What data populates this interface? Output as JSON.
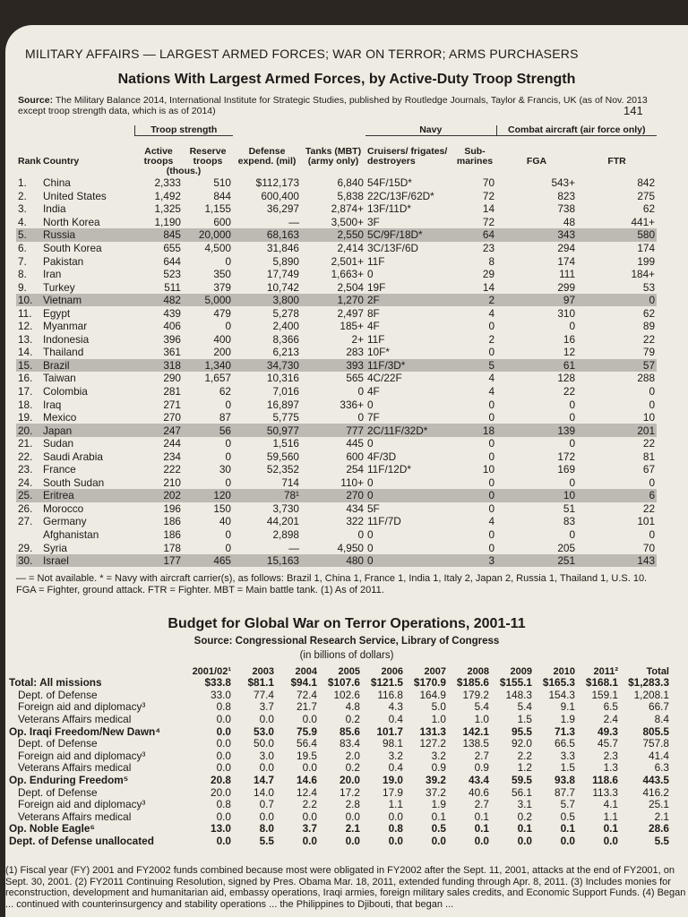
{
  "header": {
    "running_title": "MILITARY AFFAIRS — LARGEST ARMED FORCES; WAR ON TERROR; ARMS PURCHASERS",
    "page_number": "141"
  },
  "forces_table": {
    "title": "Nations With Largest Armed Forces, by Active-Duty Troop Strength",
    "source_label": "Source:",
    "source": "The Military Balance 2014, International Institute for Strategic Studies, published by Routledge Journals, Taylor & Francis, UK (as of Nov. 2013 except troop strength data, which is as of 2014)",
    "group_headers": [
      "Troop strength",
      "(thous.)",
      "Navy",
      "Combat aircraft (air force only)"
    ],
    "columns": [
      "Rank",
      "Country",
      "Active troops",
      "Reserve troops",
      "Defense expend. (mil)",
      "Tanks (MBT) (army only)",
      "Cruisers/ frigates/ destroyers",
      "Sub-marines",
      "FGA",
      "FTR"
    ],
    "rows": [
      [
        "1.",
        "China",
        "2,333",
        "510",
        "$112,173",
        "6,840",
        "54F/15D*",
        "70",
        "543+",
        "842"
      ],
      [
        "2.",
        "United States",
        "1,492",
        "844",
        "600,400",
        "5,838",
        "22C/13F/62D*",
        "72",
        "823",
        "275"
      ],
      [
        "3.",
        "India",
        "1,325",
        "1,155",
        "36,297",
        "2,874+",
        "13F/11D*",
        "14",
        "738",
        "62"
      ],
      [
        "4.",
        "North Korea",
        "1,190",
        "600",
        "—",
        "3,500+",
        "3F",
        "72",
        "48",
        "441+"
      ],
      [
        "5.",
        "Russia",
        "845",
        "20,000",
        "68,163",
        "2,550",
        "5C/9F/18D*",
        "64",
        "343",
        "580"
      ],
      [
        "6.",
        "South Korea",
        "655",
        "4,500",
        "31,846",
        "2,414",
        "3C/13F/6D",
        "23",
        "294",
        "174"
      ],
      [
        "7.",
        "Pakistan",
        "644",
        "0",
        "5,890",
        "2,501+",
        "11F",
        "8",
        "174",
        "199"
      ],
      [
        "8.",
        "Iran",
        "523",
        "350",
        "17,749",
        "1,663+",
        "0",
        "29",
        "111",
        "184+"
      ],
      [
        "9.",
        "Turkey",
        "511",
        "379",
        "10,742",
        "2,504",
        "19F",
        "14",
        "299",
        "53"
      ],
      [
        "10.",
        "Vietnam",
        "482",
        "5,000",
        "3,800",
        "1,270",
        "2F",
        "2",
        "97",
        "0"
      ],
      [
        "11.",
        "Egypt",
        "439",
        "479",
        "5,278",
        "2,497",
        "8F",
        "4",
        "310",
        "62"
      ],
      [
        "12.",
        "Myanmar",
        "406",
        "0",
        "2,400",
        "185+",
        "4F",
        "0",
        "0",
        "89"
      ],
      [
        "13.",
        "Indonesia",
        "396",
        "400",
        "8,366",
        "2+",
        "11F",
        "2",
        "16",
        "22"
      ],
      [
        "14.",
        "Thailand",
        "361",
        "200",
        "6,213",
        "283",
        "10F*",
        "0",
        "12",
        "79"
      ],
      [
        "15.",
        "Brazil",
        "318",
        "1,340",
        "34,730",
        "393",
        "11F/3D*",
        "5",
        "61",
        "57"
      ],
      [
        "16.",
        "Taiwan",
        "290",
        "1,657",
        "10,316",
        "565",
        "4C/22F",
        "4",
        "128",
        "288"
      ],
      [
        "17.",
        "Colombia",
        "281",
        "62",
        "7,016",
        "0",
        "4F",
        "4",
        "22",
        "0"
      ],
      [
        "18.",
        "Iraq",
        "271",
        "0",
        "16,897",
        "336+",
        "0",
        "0",
        "0",
        "0"
      ],
      [
        "19.",
        "Mexico",
        "270",
        "87",
        "5,775",
        "0",
        "7F",
        "0",
        "0",
        "10"
      ],
      [
        "20.",
        "Japan",
        "247",
        "56",
        "50,977",
        "777",
        "2C/11F/32D*",
        "18",
        "139",
        "201"
      ],
      [
        "21.",
        "Sudan",
        "244",
        "0",
        "1,516",
        "445",
        "0",
        "0",
        "0",
        "22"
      ],
      [
        "22.",
        "Saudi Arabia",
        "234",
        "0",
        "59,560",
        "600",
        "4F/3D",
        "0",
        "172",
        "81"
      ],
      [
        "23.",
        "France",
        "222",
        "30",
        "52,352",
        "254",
        "11F/12D*",
        "10",
        "169",
        "67"
      ],
      [
        "24.",
        "South Sudan",
        "210",
        "0",
        "714",
        "110+",
        "0",
        "0",
        "0",
        "0"
      ],
      [
        "25.",
        "Eritrea",
        "202",
        "120",
        "78¹",
        "270",
        "0",
        "0",
        "10",
        "6"
      ],
      [
        "26.",
        "Morocco",
        "196",
        "150",
        "3,730",
        "434",
        "5F",
        "0",
        "51",
        "22"
      ],
      [
        "27.",
        "Germany",
        "186",
        "40",
        "44,201",
        "322",
        "11F/7D",
        "4",
        "83",
        "101"
      ],
      [
        null,
        "Afghanistan",
        "186",
        "0",
        "2,898",
        "0",
        "0",
        "0",
        "0",
        "0"
      ],
      [
        "29.",
        "Syria",
        "178",
        "0",
        "—",
        "4,950",
        "0",
        "0",
        "205",
        "70"
      ],
      [
        "30.",
        "Israel",
        "177",
        "465",
        "15,163",
        "480",
        "0",
        "3",
        "251",
        "143"
      ]
    ],
    "footnote": "— = Not available. * = Navy with aircraft carrier(s), as follows: Brazil 1, China 1, France 1, India 1, Italy 2, Japan 2, Russia 1, Thailand 1, U.S. 10. FGA = Fighter, ground attack. FTR = Fighter. MBT = Main battle tank. (1) As of 2011."
  },
  "budget_table": {
    "title": "Budget for Global War on Terror Operations, 2001-11",
    "source": "Source: Congressional Research Service, Library of Congress",
    "units": "(in billions of dollars)",
    "columns": [
      "2001/02¹",
      "2003",
      "2004",
      "2005",
      "2006",
      "2007",
      "2008",
      "2009",
      "2010",
      "2011²",
      "Total"
    ],
    "rows": [
      {
        "label": "Total: All missions",
        "values": [
          "$33.8",
          "$81.1",
          "$94.1",
          "$107.6",
          "$121.5",
          "$170.9",
          "$185.6",
          "$155.1",
          "$165.3",
          "$168.1",
          "$1,283.3"
        ]
      },
      {
        "label": "Dept. of Defense",
        "values": [
          "33.0",
          "77.4",
          "72.4",
          "102.6",
          "116.8",
          "164.9",
          "179.2",
          "148.3",
          "154.3",
          "159.1",
          "1,208.1"
        ]
      },
      {
        "label": "Foreign aid and diplomacy³",
        "values": [
          "0.8",
          "3.7",
          "21.7",
          "4.8",
          "4.3",
          "5.0",
          "5.4",
          "5.4",
          "9.1",
          "6.5",
          "66.7"
        ]
      },
      {
        "label": "Veterans Affairs medical",
        "values": [
          "0.0",
          "0.0",
          "0.0",
          "0.2",
          "0.4",
          "1.0",
          "1.0",
          "1.5",
          "1.9",
          "2.4",
          "8.4"
        ]
      },
      {
        "label": "Op. Iraqi Freedom/New Dawn⁴",
        "values": [
          "0.0",
          "53.0",
          "75.9",
          "85.6",
          "101.7",
          "131.3",
          "142.1",
          "95.5",
          "71.3",
          "49.3",
          "805.5"
        ]
      },
      {
        "label": "Dept. of Defense",
        "values": [
          "0.0",
          "50.0",
          "56.4",
          "83.4",
          "98.1",
          "127.2",
          "138.5",
          "92.0",
          "66.5",
          "45.7",
          "757.8"
        ]
      },
      {
        "label": "Foreign aid and diplomacy³",
        "values": [
          "0.0",
          "3.0",
          "19.5",
          "2.0",
          "3.2",
          "3.2",
          "2.7",
          "2.2",
          "3.3",
          "2.3",
          "41.4"
        ]
      },
      {
        "label": "Veterans Affairs medical",
        "values": [
          "0.0",
          "0.0",
          "0.0",
          "0.2",
          "0.4",
          "0.9",
          "0.9",
          "1.2",
          "1.5",
          "1.3",
          "6.3"
        ]
      },
      {
        "label": "Op. Enduring Freedom⁵",
        "values": [
          "20.8",
          "14.7",
          "14.6",
          "20.0",
          "19.0",
          "39.2",
          "43.4",
          "59.5",
          "93.8",
          "118.6",
          "443.5"
        ]
      },
      {
        "label": "Dept. of Defense",
        "values": [
          "20.0",
          "14.0",
          "12.4",
          "17.2",
          "17.9",
          "37.2",
          "40.6",
          "56.1",
          "87.7",
          "113.3",
          "416.2"
        ]
      },
      {
        "label": "Foreign aid and diplomacy³",
        "values": [
          "0.8",
          "0.7",
          "2.2",
          "2.8",
          "1.1",
          "1.9",
          "2.7",
          "3.1",
          "5.7",
          "4.1",
          "25.1"
        ]
      },
      {
        "label": "Veterans Affairs medical",
        "values": [
          "0.0",
          "0.0",
          "0.0",
          "0.0",
          "0.0",
          "0.1",
          "0.1",
          "0.2",
          "0.5",
          "1.1",
          "2.1"
        ]
      },
      {
        "label": "Op. Noble Eagle⁶",
        "values": [
          "13.0",
          "8.0",
          "3.7",
          "2.1",
          "0.8",
          "0.5",
          "0.1",
          "0.1",
          "0.1",
          "0.1",
          "28.6"
        ]
      },
      {
        "label": "Dept. of Defense unallocated",
        "values": [
          "0.0",
          "5.5",
          "0.0",
          "0.0",
          "0.0",
          "0.0",
          "0.0",
          "0.0",
          "0.0",
          "0.0",
          "5.5"
        ]
      }
    ],
    "footnotes": "(1) Fiscal year (FY) 2001 and FY2002 funds combined because most were obligated in FY2002 after the Sept. 11, 2001, attacks at the end of FY2001, on Sept. 30, 2001. (2) FY2011 Continuing Resolution, signed by Pres. Obama Mar. 18, 2011, extended funding through Apr. 8, 2011. (3) Includes monies for reconstruction, development and humanitarian aid, embassy operations, Iraqi armies, foreign military sales credits, and Economic Support Funds. (4) Began ... continued with counterinsurgency and stability operations ... the Philippines to Djibouti, that began ..."
  }
}
